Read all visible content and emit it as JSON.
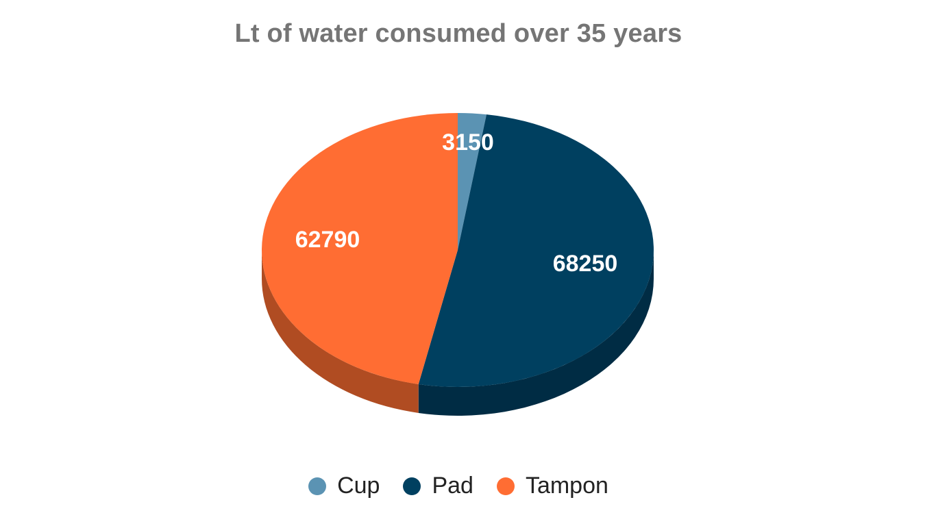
{
  "chart_data": {
    "type": "pie",
    "title": "Lt of water consumed over 35 years",
    "categories": [
      "Cup",
      "Pad",
      "Tampon"
    ],
    "values": [
      3150,
      68250,
      62790
    ],
    "labels": [
      "3150",
      "68250",
      "62790"
    ],
    "colors": [
      "#5b93b3",
      "#004060",
      "#ff6d33"
    ],
    "side_colors": [
      "#3f6f8a",
      "#002c44",
      "#b04c22"
    ],
    "legend_position": "bottom",
    "style": "3d"
  }
}
